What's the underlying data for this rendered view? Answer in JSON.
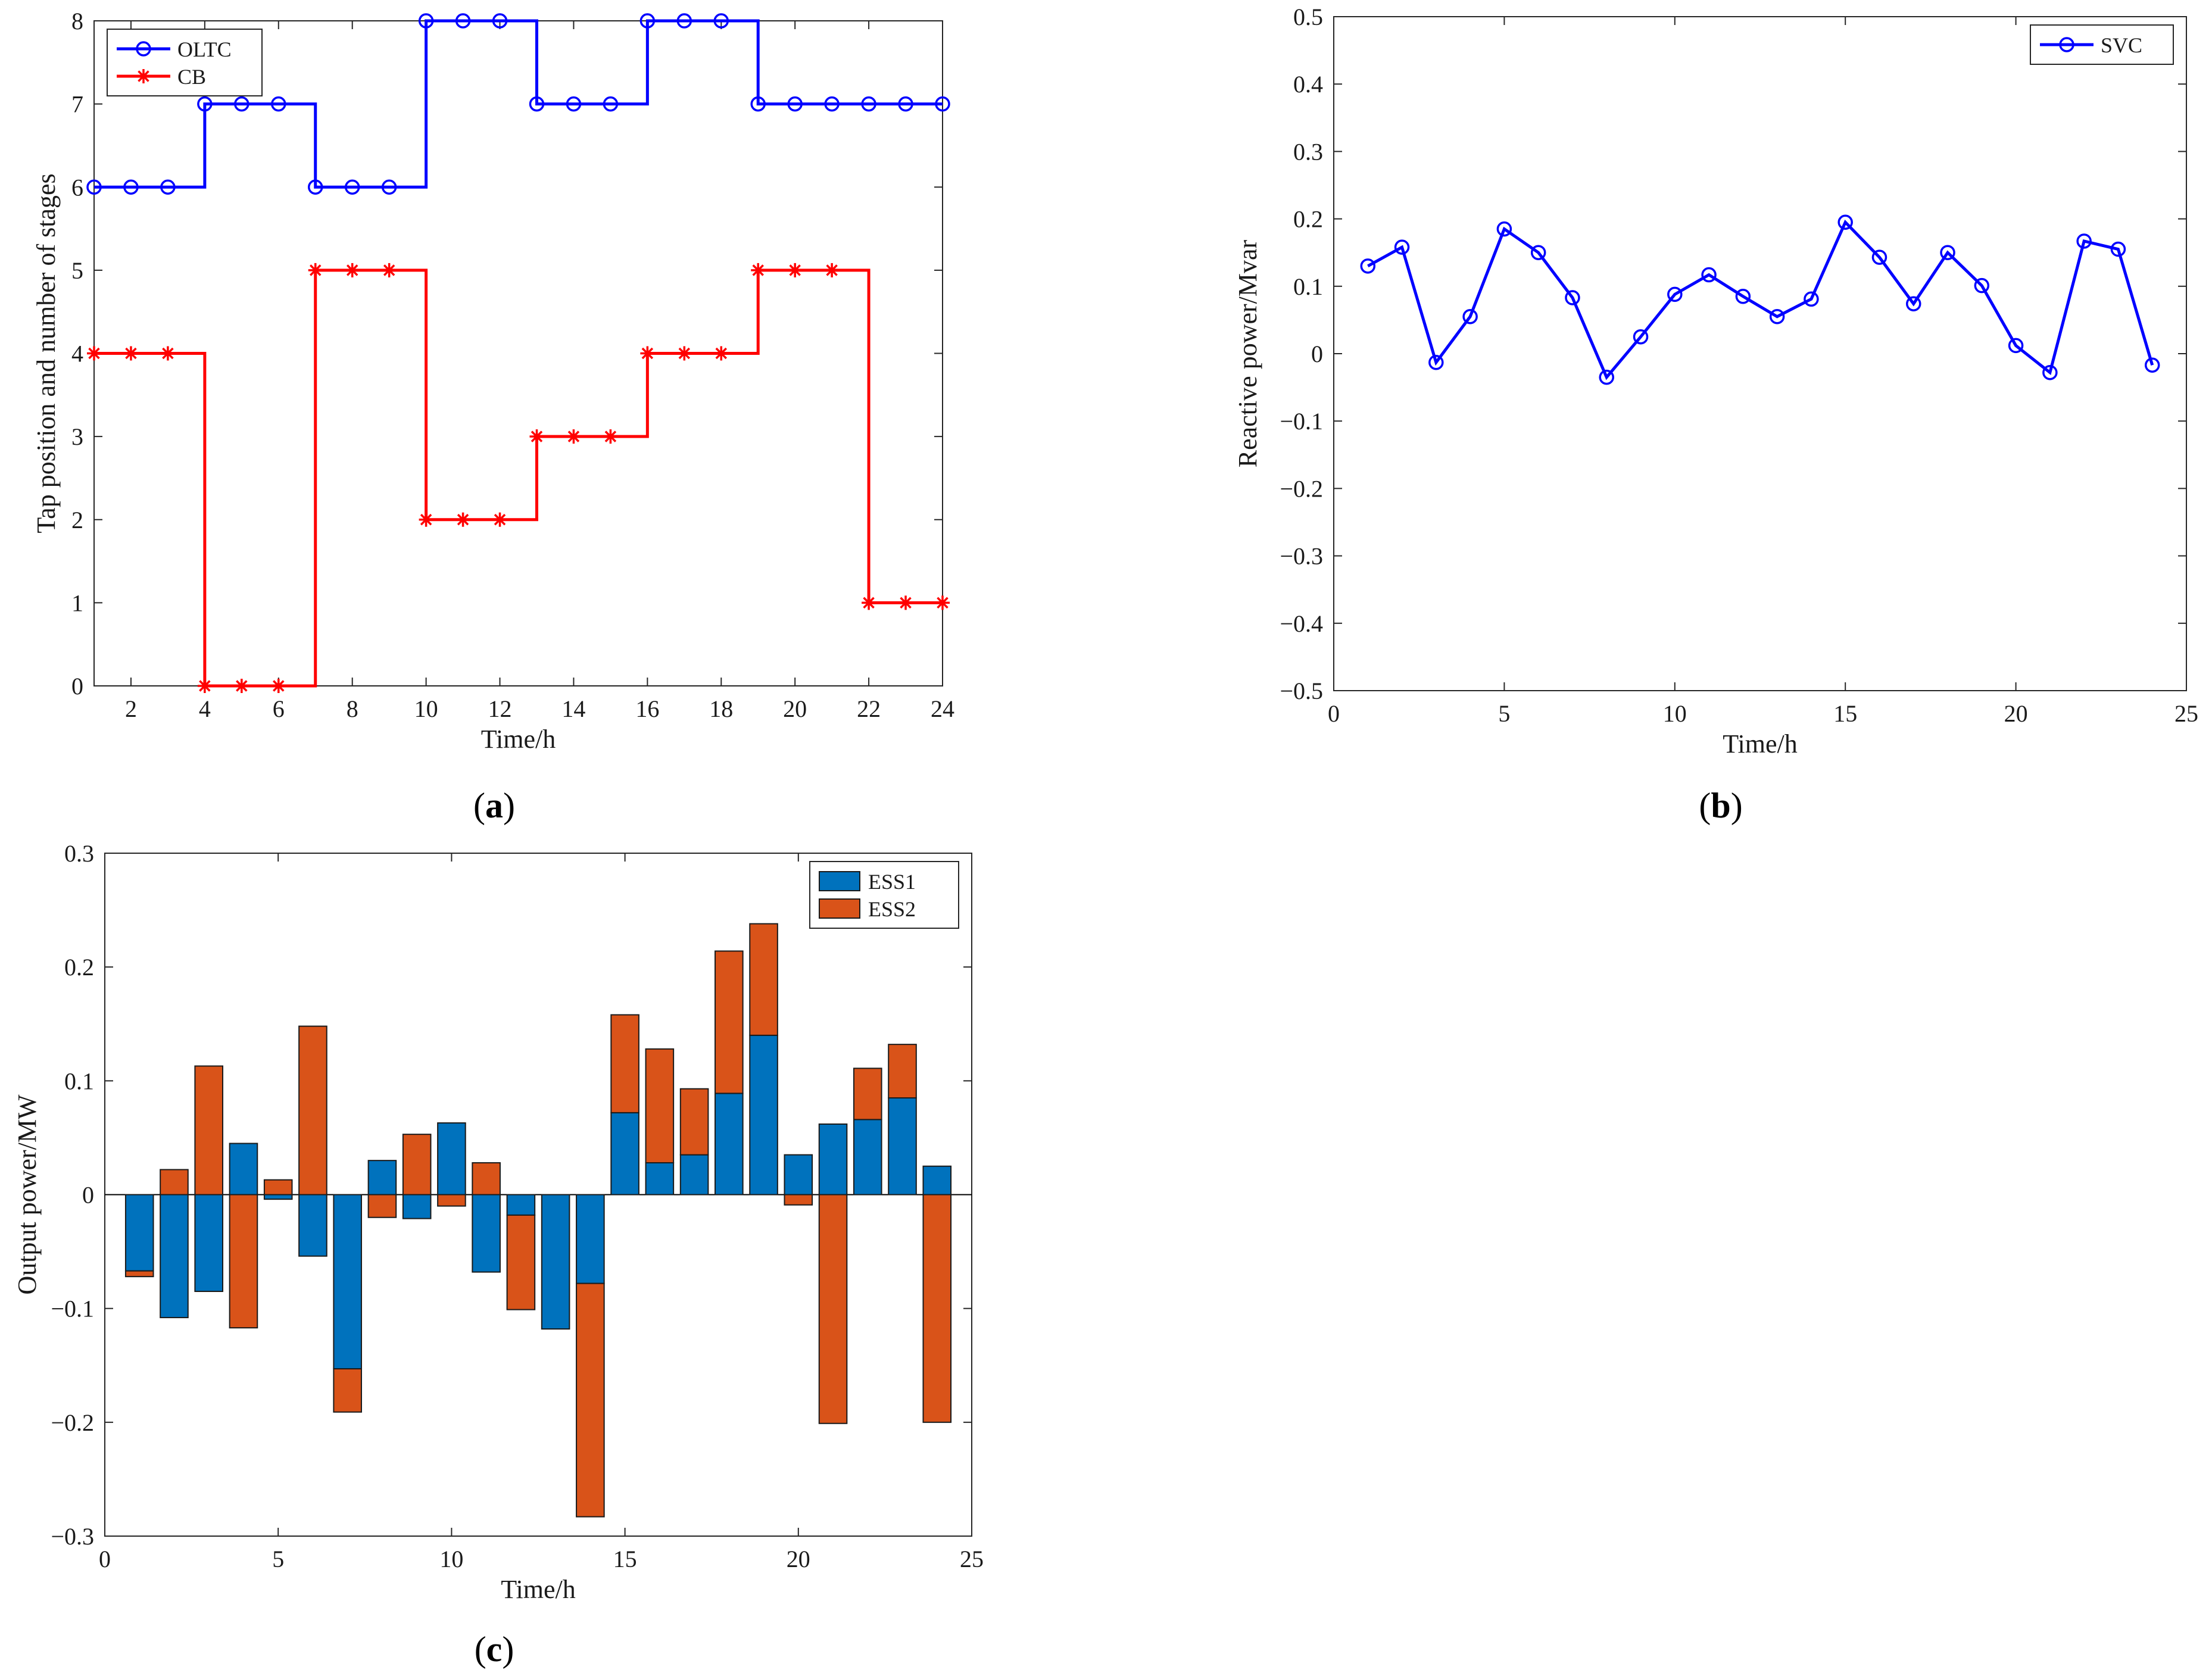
{
  "chart_data": [
    {
      "panel_label": "a",
      "type": "line",
      "step": true,
      "x": [
        1,
        2,
        3,
        4,
        5,
        6,
        7,
        8,
        9,
        10,
        11,
        12,
        13,
        14,
        15,
        16,
        17,
        18,
        19,
        20,
        21,
        22,
        23,
        24
      ],
      "series": [
        {
          "name": "OLTC",
          "color": "#0000ff",
          "marker": "circle",
          "values": [
            6,
            6,
            6,
            7,
            7,
            7,
            6,
            6,
            6,
            8,
            8,
            8,
            7,
            7,
            7,
            8,
            8,
            8,
            7,
            7,
            7,
            7,
            7,
            7
          ]
        },
        {
          "name": "CB",
          "color": "#ff0000",
          "marker": "star",
          "values": [
            4,
            4,
            4,
            0,
            0,
            0,
            5,
            5,
            5,
            2,
            2,
            2,
            3,
            3,
            3,
            4,
            4,
            4,
            5,
            5,
            5,
            1,
            1,
            1
          ]
        }
      ],
      "xlabel": "Time/h",
      "ylabel": "Tap position and number of stages",
      "xlim": [
        1,
        24
      ],
      "ylim": [
        0,
        8
      ],
      "xticks": [
        "2",
        "4",
        "6",
        "8",
        "10",
        "12",
        "14",
        "16",
        "18",
        "20",
        "22",
        "24"
      ],
      "yticks": [
        "0",
        "1",
        "2",
        "3",
        "4",
        "5",
        "6",
        "7",
        "8"
      ],
      "legend_position": "top-left"
    },
    {
      "panel_label": "b",
      "type": "line",
      "x": [
        1,
        2,
        3,
        4,
        5,
        6,
        7,
        8,
        9,
        10,
        11,
        12,
        13,
        14,
        15,
        16,
        17,
        18,
        19,
        20,
        21,
        22,
        23,
        24
      ],
      "series": [
        {
          "name": "SVC",
          "color": "#0000ff",
          "marker": "circle",
          "values": [
            0.13,
            0.158,
            -0.013,
            0.055,
            0.185,
            0.15,
            0.083,
            -0.035,
            0.025,
            0.088,
            0.117,
            0.085,
            0.055,
            0.081,
            0.195,
            0.143,
            0.074,
            0.15,
            0.101,
            0.012,
            -0.028,
            0.167,
            0.155,
            -0.017
          ]
        }
      ],
      "xlabel": "Time/h",
      "ylabel": "Reactive power/Mvar",
      "xlim": [
        0,
        25
      ],
      "ylim": [
        -0.5,
        0.5
      ],
      "xticks": [
        "0",
        "5",
        "10",
        "15",
        "20",
        "25"
      ],
      "yticks": [
        "−0.5",
        "−0.4",
        "−0.3",
        "−0.2",
        "−0.1",
        "0",
        "0.1",
        "0.2",
        "0.3",
        "0.4",
        "0.5"
      ],
      "legend_position": "top-right"
    },
    {
      "panel_label": "c",
      "type": "bar",
      "stacked": true,
      "x": [
        1,
        2,
        3,
        4,
        5,
        6,
        7,
        8,
        9,
        10,
        11,
        12,
        13,
        14,
        15,
        16,
        17,
        18,
        19,
        20,
        21,
        22,
        23,
        24
      ],
      "series": [
        {
          "name": "ESS1",
          "color": "#0072bd",
          "values": [
            -0.067,
            -0.108,
            -0.085,
            0.045,
            -0.004,
            -0.054,
            -0.153,
            0.03,
            -0.021,
            0.063,
            -0.068,
            -0.018,
            -0.118,
            -0.078,
            0.072,
            0.028,
            0.035,
            0.089,
            0.14,
            0.035,
            0.062,
            0.066,
            0.085,
            0.025
          ]
        },
        {
          "name": "ESS2",
          "color": "#d95319",
          "values": [
            -0.005,
            0.022,
            0.113,
            -0.117,
            0.013,
            0.148,
            -0.038,
            -0.02,
            0.053,
            -0.01,
            0.028,
            -0.083,
            0.0,
            -0.205,
            0.086,
            0.1,
            0.058,
            0.125,
            0.098,
            -0.009,
            -0.201,
            0.045,
            0.047,
            -0.2
          ]
        }
      ],
      "xlabel": "Time/h",
      "ylabel": "Output power/MW",
      "xlim": [
        0,
        25
      ],
      "ylim": [
        -0.3,
        0.3
      ],
      "xticks": [
        "0",
        "5",
        "10",
        "15",
        "20",
        "25"
      ],
      "yticks": [
        "−0.3",
        "−0.2",
        "−0.1",
        "0",
        "0.1",
        "0.2",
        "0.3"
      ],
      "legend_position": "top-right"
    }
  ]
}
